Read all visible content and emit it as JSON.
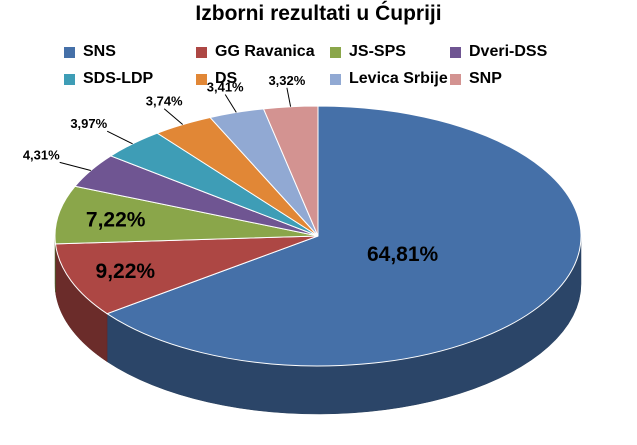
{
  "chart_data": {
    "type": "pie",
    "title": "Izborni rezultati u Ćupriji",
    "legend_position": "top",
    "three_d": true,
    "slices": [
      {
        "name": "SNS",
        "value": 64.81,
        "label": "64,81%",
        "color": "#4570A8"
      },
      {
        "name": "GG Ravanica",
        "value": 9.22,
        "label": "9,22%",
        "color": "#AD4744"
      },
      {
        "name": "JS-SPS",
        "value": 7.22,
        "label": "7,22%",
        "color": "#8AA64A"
      },
      {
        "name": "Dveri-DSS",
        "value": 4.31,
        "label": "4,31%",
        "color": "#6F5592"
      },
      {
        "name": "SDS-LDP",
        "value": 3.97,
        "label": "3,97%",
        "color": "#3E9DB6"
      },
      {
        "name": "DS",
        "value": 3.74,
        "label": "3,74%",
        "color": "#E18736"
      },
      {
        "name": "Levica Srbije",
        "value": 3.41,
        "label": "3,41%",
        "color": "#91A9D3"
      },
      {
        "name": "SNP",
        "value": 3.32,
        "label": "3,32%",
        "color": "#D39391"
      }
    ]
  }
}
